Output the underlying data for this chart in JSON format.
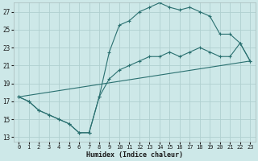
{
  "xlabel": "Humidex (Indice chaleur)",
  "background_color": "#cde8e8",
  "grid_color": "#b0d0d0",
  "line_color": "#2a7070",
  "xlim": [
    -0.5,
    23.5
  ],
  "ylim": [
    12.5,
    28.0
  ],
  "xticks": [
    0,
    1,
    2,
    3,
    4,
    5,
    6,
    7,
    8,
    9,
    10,
    11,
    12,
    13,
    14,
    15,
    16,
    17,
    18,
    19,
    20,
    21,
    22,
    23
  ],
  "yticks": [
    13,
    15,
    17,
    19,
    21,
    23,
    25,
    27
  ],
  "line1_x": [
    0,
    1,
    2,
    3,
    4,
    5,
    6,
    7,
    8,
    9,
    10,
    11,
    12,
    13,
    14,
    15,
    16,
    17,
    18,
    19,
    20,
    21,
    22,
    23
  ],
  "line1_y": [
    17.5,
    17.0,
    16.0,
    15.5,
    15.0,
    14.5,
    13.5,
    13.5,
    17.5,
    22.5,
    25.5,
    26.0,
    27.0,
    27.5,
    28.0,
    27.5,
    27.2,
    27.5,
    27.0,
    26.5,
    24.5,
    24.5,
    23.5,
    21.5
  ],
  "line2_x": [
    0,
    1,
    2,
    3,
    4,
    5,
    6,
    7,
    8,
    9,
    10,
    11,
    12,
    13,
    14,
    15,
    16,
    17,
    18,
    19,
    20,
    21,
    22,
    23
  ],
  "line2_y": [
    17.5,
    17.0,
    16.0,
    15.5,
    15.0,
    14.5,
    13.5,
    13.5,
    17.5,
    19.5,
    20.5,
    21.0,
    21.5,
    22.0,
    22.0,
    22.5,
    22.0,
    22.5,
    23.0,
    22.5,
    22.0,
    22.0,
    23.5,
    21.5
  ],
  "line3_x": [
    0,
    23
  ],
  "line3_y": [
    17.5,
    21.5
  ]
}
